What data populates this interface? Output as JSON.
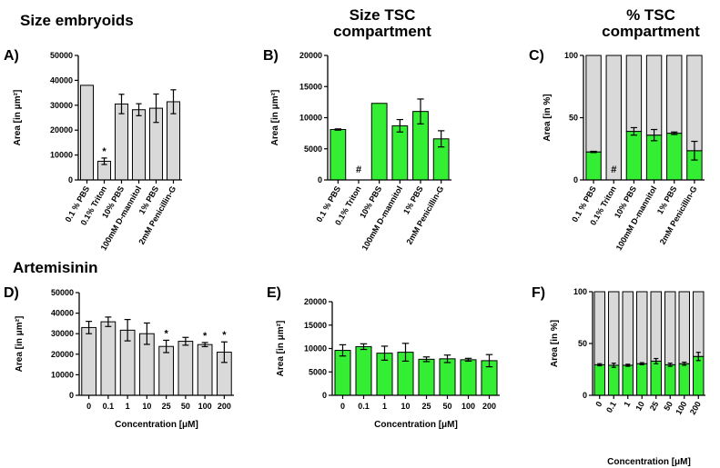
{
  "headings": {
    "size_embryoids": "Size embryoids",
    "size_tsc_1": "Size TSC",
    "size_tsc_2": "compartment",
    "pct_tsc_1": "% TSC",
    "pct_tsc_2": "compartment",
    "artemisinin": "Artemisinin"
  },
  "colors": {
    "gray": "#d9d9d9",
    "green": "#33ee33",
    "edge": "#000000"
  },
  "chart_data": [
    {
      "panel": "A)",
      "type": "bar",
      "ylabel": "Area [in μm²]",
      "xlabel": "",
      "ylim": [
        0,
        50000
      ],
      "yticks": [
        0,
        10000,
        20000,
        30000,
        40000,
        50000
      ],
      "categories": [
        "0.1 % PBS",
        "0.1% Triton",
        "10% PBS",
        "100mM D-mannitol",
        "1% PBS",
        "2mM Penicillin-G"
      ],
      "series": [
        {
          "color": "gray",
          "values": [
            38000,
            7500,
            30500,
            28200,
            28800,
            31400
          ],
          "errors": [
            0,
            1300,
            3900,
            2400,
            5700,
            4800
          ]
        }
      ],
      "annotations": [
        {
          "index": 1,
          "text": "*"
        }
      ]
    },
    {
      "panel": "B)",
      "type": "bar",
      "ylabel": "Area [in μm²]",
      "xlabel": "",
      "ylim": [
        0,
        20000
      ],
      "yticks": [
        0,
        5000,
        10000,
        15000,
        20000
      ],
      "categories": [
        "0.1 % PBS",
        "0.1% Triton",
        "10% PBS",
        "100mM D-mannitol",
        "1% PBS",
        "2mM Penicillin-G"
      ],
      "series": [
        {
          "color": "green",
          "values": [
            8100,
            0,
            12300,
            8700,
            11000,
            6600
          ],
          "errors": [
            100,
            0,
            0,
            1000,
            2000,
            1300
          ]
        }
      ],
      "annotations": [
        {
          "index": 1,
          "text": "#"
        }
      ]
    },
    {
      "panel": "C)",
      "type": "bar",
      "stacked": true,
      "ylabel": "Area [in %]",
      "xlabel": "",
      "ylim": [
        0,
        100
      ],
      "yticks": [
        0,
        50,
        100
      ],
      "categories": [
        "0.1 % PBS",
        "0.1% Triton",
        "10% PBS",
        "100mM D-mannitol",
        "1% PBS",
        "2mM Penicillin-G"
      ],
      "series": [
        {
          "color": "green",
          "values": [
            22.5,
            0,
            39,
            36,
            37.5,
            23.5
          ],
          "errors": [
            0.5,
            0,
            3,
            4.5,
            1,
            7.5
          ]
        },
        {
          "color": "gray",
          "values": [
            77.5,
            100,
            61,
            64,
            62.5,
            76.5
          ]
        }
      ],
      "annotations": [
        {
          "index": 1,
          "text": "#"
        }
      ]
    },
    {
      "panel": "D)",
      "type": "bar",
      "ylabel": "Area [in μm²]",
      "xlabel": "Concentration [μM]",
      "ylim": [
        0,
        50000
      ],
      "yticks": [
        0,
        10000,
        20000,
        30000,
        40000,
        50000
      ],
      "categories": [
        "0",
        "0.1",
        "1",
        "10",
        "25",
        "50",
        "100",
        "200"
      ],
      "series": [
        {
          "color": "gray",
          "values": [
            33000,
            35800,
            31700,
            30000,
            23800,
            26300,
            24700,
            21000
          ],
          "errors": [
            3000,
            2300,
            5200,
            5200,
            3000,
            1900,
            1000,
            5000
          ]
        }
      ],
      "annotations": [
        {
          "index": 4,
          "text": "*"
        },
        {
          "index": 6,
          "text": "*"
        },
        {
          "index": 7,
          "text": "*"
        }
      ]
    },
    {
      "panel": "E)",
      "type": "bar",
      "ylabel": "Area [in μm²]",
      "xlabel": "Concentration [μM]",
      "ylim": [
        0,
        20000
      ],
      "yticks": [
        0,
        5000,
        10000,
        15000,
        20000
      ],
      "categories": [
        "0",
        "0.1",
        "1",
        "10",
        "25",
        "50",
        "100",
        "200"
      ],
      "series": [
        {
          "color": "green",
          "values": [
            9600,
            10400,
            9000,
            9200,
            7700,
            7800,
            7600,
            7400
          ],
          "errors": [
            1200,
            600,
            1500,
            1900,
            500,
            800,
            300,
            1300
          ]
        }
      ],
      "annotations": []
    },
    {
      "panel": "F)",
      "type": "bar",
      "stacked": true,
      "ylabel": "Area [in %]",
      "xlabel": "Concentration [μM]",
      "ylim": [
        0,
        100
      ],
      "yticks": [
        0,
        50,
        100
      ],
      "categories": [
        "0",
        "0.1",
        "1",
        "10",
        "25",
        "50",
        "100",
        "200"
      ],
      "series": [
        {
          "color": "green",
          "values": [
            29.5,
            29,
            29,
            30.5,
            33,
            29.5,
            30.5,
            37.5
          ],
          "errors": [
            1,
            2,
            1,
            1,
            2.5,
            1.5,
            1.5,
            4
          ]
        },
        {
          "color": "gray",
          "values": [
            70.5,
            71,
            71,
            69.5,
            67,
            70.5,
            69.5,
            62.5
          ]
        }
      ],
      "annotations": []
    }
  ]
}
